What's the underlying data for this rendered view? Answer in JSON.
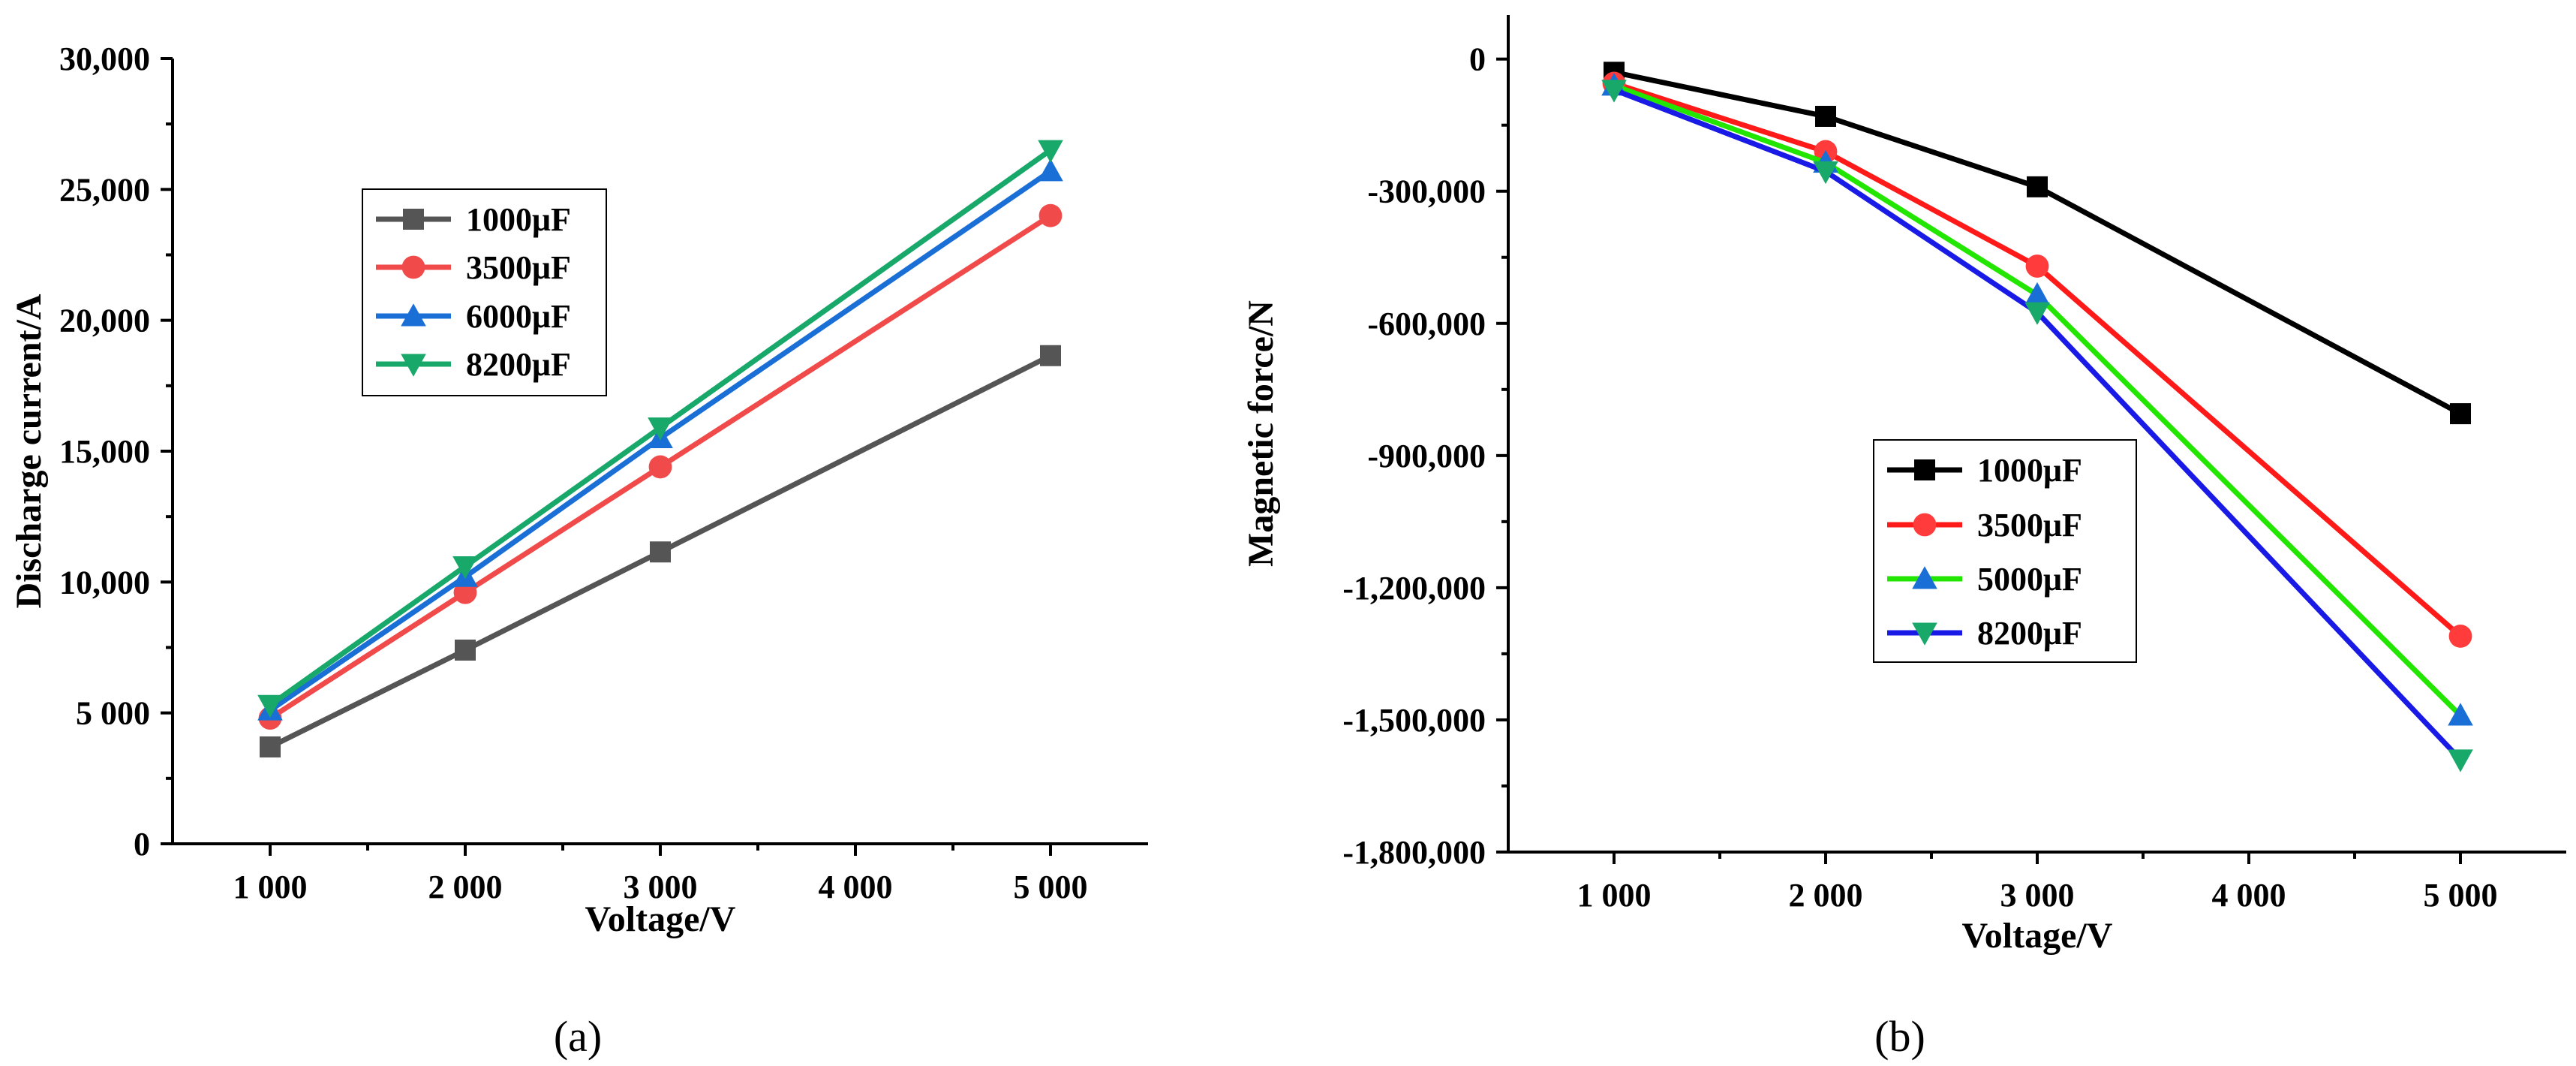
{
  "chart_data": [
    {
      "type": "line",
      "title": "",
      "xlabel": "Voltage/V",
      "ylabel": "Discharge current/A",
      "x": [
        1000,
        2000,
        3000,
        5000
      ],
      "xlim": [
        500,
        5500
      ],
      "ylim": [
        0,
        30000
      ],
      "xticks": [
        1000,
        2000,
        3000,
        4000,
        5000
      ],
      "xtick_labels": [
        "1 000",
        "2 000",
        "3 000",
        "4 000",
        "5 000"
      ],
      "yticks": [
        0,
        5000,
        10000,
        15000,
        20000,
        25000,
        30000
      ],
      "ytick_labels": [
        "0",
        "5 000",
        "10,000",
        "15,000",
        "20,000",
        "25,000",
        "30,000"
      ],
      "grid": false,
      "legend_position": "upper-left",
      "series": [
        {
          "name": "1000μF",
          "values": [
            3700,
            7400,
            11150,
            18650
          ],
          "color": "#555555",
          "marker": "square"
        },
        {
          "name": "3500μF",
          "values": [
            4800,
            9600,
            14400,
            24000
          ],
          "color": "#f04a4a",
          "marker": "circle"
        },
        {
          "name": "6000μF",
          "values": [
            5100,
            10200,
            15500,
            25700
          ],
          "color": "#1a6fd6",
          "marker": "triangle-up"
        },
        {
          "name": "8200μF",
          "values": [
            5300,
            10600,
            15900,
            26500
          ],
          "color": "#17a86a",
          "marker": "triangle-down"
        }
      ],
      "panel_label": "(a)"
    },
    {
      "type": "line",
      "title": "",
      "xlabel": "Voltage/V",
      "ylabel": "Magnetic force/N",
      "x": [
        1000,
        2000,
        3000,
        5000
      ],
      "xlim": [
        500,
        5500
      ],
      "ylim": [
        -1800000,
        100000
      ],
      "xticks": [
        1000,
        2000,
        3000,
        4000,
        5000
      ],
      "xtick_labels": [
        "1 000",
        "2 000",
        "3 000",
        "4 000",
        "5 000"
      ],
      "yticks": [
        0,
        -300000,
        -600000,
        -900000,
        -1200000,
        -1500000,
        -1800000
      ],
      "ytick_labels": [
        "0",
        "-300,000",
        "-600,000",
        "-900,000",
        "-1,200,000",
        "-1,500,000",
        "-1,800,000"
      ],
      "grid": false,
      "legend_position": "center",
      "series": [
        {
          "name": "1000μF",
          "values": [
            -30000,
            -130000,
            -290000,
            -805000
          ],
          "color": "#000000",
          "marker": "square"
        },
        {
          "name": "3500μF",
          "values": [
            -55000,
            -210000,
            -470000,
            -1310000
          ],
          "color": "#ff1a1a",
          "marker": "circle"
        },
        {
          "name": "5000μF",
          "values": [
            -60000,
            -235000,
            -535000,
            -1490000
          ],
          "color": "#22e600",
          "marker": "triangle-up"
        },
        {
          "name": "8200μF",
          "values": [
            -70000,
            -255000,
            -575000,
            -1590000
          ],
          "color": "#1a1ae6",
          "marker": "triangle-down"
        }
      ],
      "marker_fills": [
        "#000000",
        "#ff3b3b",
        "#1a6fd6",
        "#17a86a"
      ],
      "panel_label": "(b)"
    }
  ]
}
